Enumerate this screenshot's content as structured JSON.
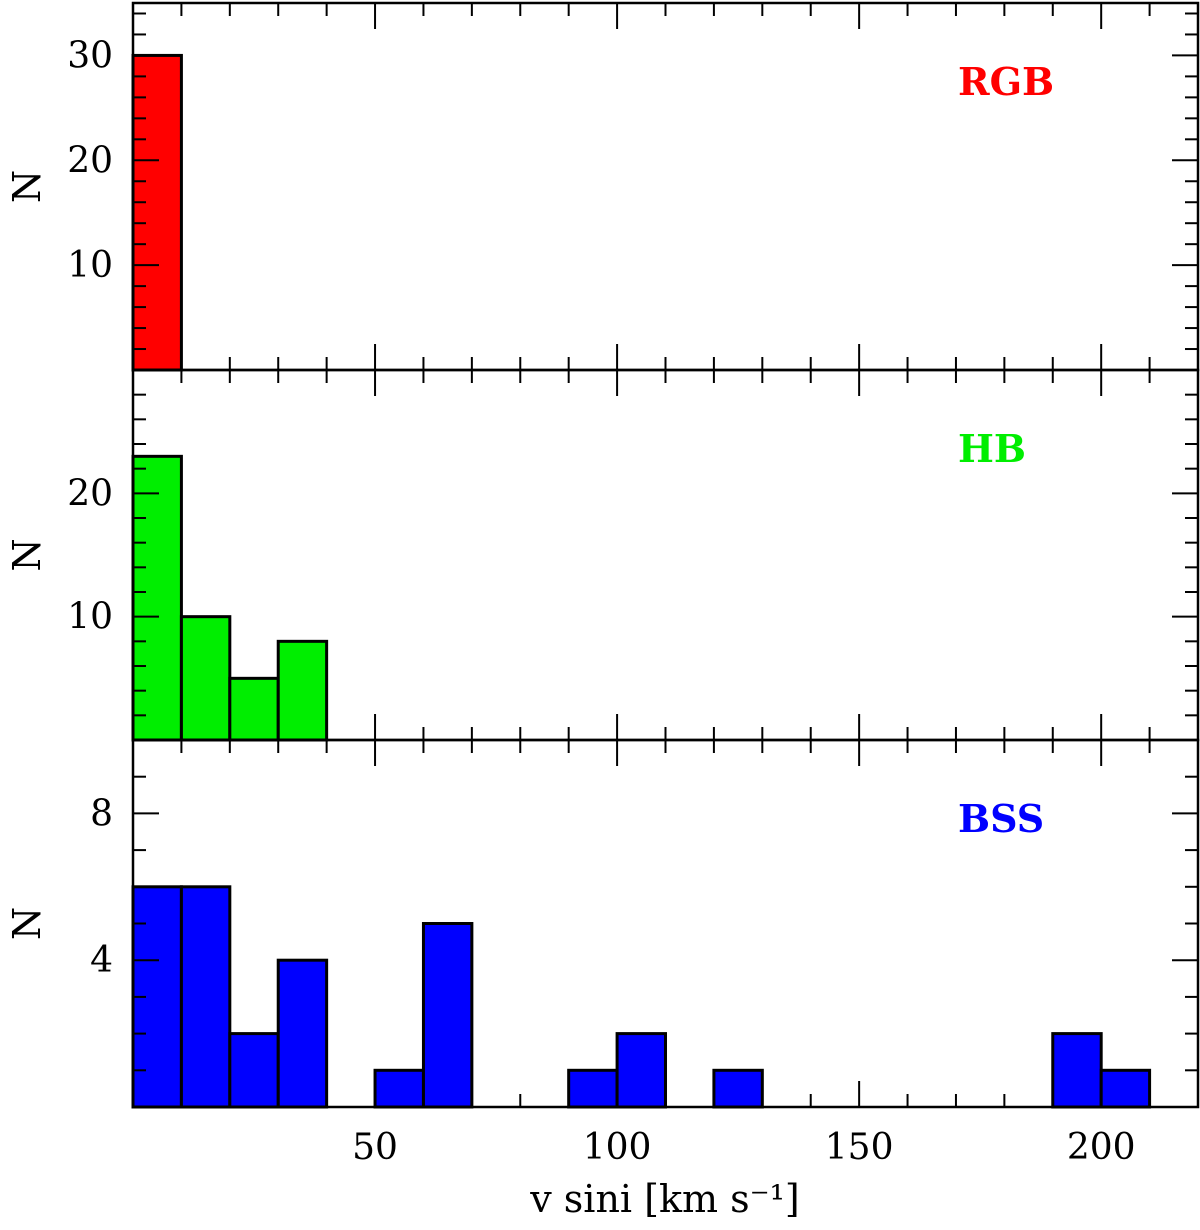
{
  "chart_data": [
    {
      "type": "bar",
      "histogram": true,
      "label": "RGB",
      "color": "#ff0000",
      "bin_width": 10,
      "bins": [
        {
          "x0": 0,
          "x1": 10,
          "count": 30
        }
      ],
      "xlim": [
        0,
        220
      ],
      "ylim": [
        0,
        35
      ],
      "yticks": [
        10,
        20,
        30
      ],
      "xlabel": "",
      "ylabel": "N"
    },
    {
      "type": "bar",
      "histogram": true,
      "label": "HB",
      "color": "#00ee00",
      "bin_width": 10,
      "bins": [
        {
          "x0": 0,
          "x1": 10,
          "count": 23
        },
        {
          "x0": 10,
          "x1": 20,
          "count": 10
        },
        {
          "x0": 20,
          "x1": 30,
          "count": 5
        },
        {
          "x0": 30,
          "x1": 40,
          "count": 8
        }
      ],
      "xlim": [
        0,
        220
      ],
      "ylim": [
        0,
        30
      ],
      "yticks": [
        10,
        20
      ],
      "xlabel": "",
      "ylabel": "N"
    },
    {
      "type": "bar",
      "histogram": true,
      "label": "BSS",
      "color": "#0000ff",
      "bin_width": 10,
      "bins": [
        {
          "x0": 0,
          "x1": 10,
          "count": 6
        },
        {
          "x0": 10,
          "x1": 20,
          "count": 6
        },
        {
          "x0": 20,
          "x1": 30,
          "count": 2
        },
        {
          "x0": 30,
          "x1": 40,
          "count": 4
        },
        {
          "x0": 50,
          "x1": 60,
          "count": 1
        },
        {
          "x0": 60,
          "x1": 70,
          "count": 5
        },
        {
          "x0": 90,
          "x1": 100,
          "count": 1
        },
        {
          "x0": 100,
          "x1": 110,
          "count": 2
        },
        {
          "x0": 120,
          "x1": 130,
          "count": 1
        },
        {
          "x0": 190,
          "x1": 200,
          "count": 2
        },
        {
          "x0": 200,
          "x1": 210,
          "count": 1
        }
      ],
      "xlim": [
        0,
        220
      ],
      "ylim": [
        0,
        10
      ],
      "yticks": [
        4,
        8
      ],
      "xticks": [
        50,
        100,
        150,
        200
      ],
      "xlabel": "v sini [km s⁻¹]",
      "ylabel": "N"
    }
  ]
}
